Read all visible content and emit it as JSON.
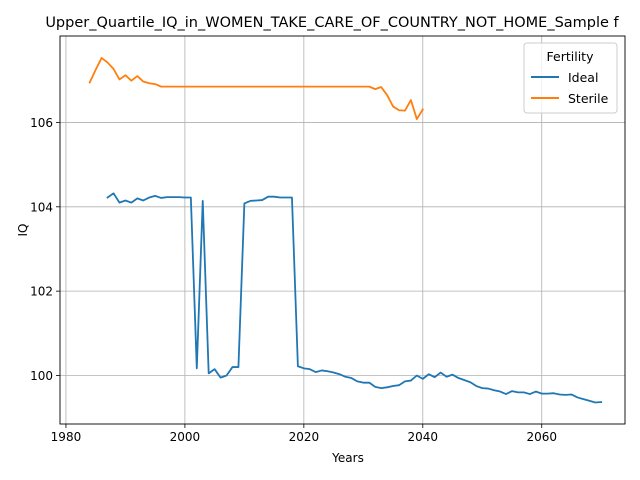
{
  "chart_data": {
    "type": "line",
    "title": "Upper_Quartile_IQ_in_WOMEN_TAKE_CARE_OF_COUNTRY_NOT_HOME_Sample f",
    "xlabel": "Years",
    "ylabel": "IQ",
    "xlim": [
      1979,
      2074
    ],
    "ylim": [
      98.85,
      108.05
    ],
    "xticks": [
      1980,
      2000,
      2020,
      2040,
      2060
    ],
    "yticks": [
      100,
      102,
      104,
      106
    ],
    "grid": true,
    "legend": {
      "title": "Fertility",
      "position": "top-right"
    },
    "series": [
      {
        "name": "Ideal",
        "color": "#1f77b4",
        "x": [
          1987,
          1988,
          1989,
          1990,
          1991,
          1992,
          1993,
          1994,
          1995,
          1996,
          1997,
          1998,
          1999,
          2000,
          2001,
          2002,
          2003,
          2004,
          2005,
          2006,
          2007,
          2008,
          2009,
          2010,
          2011,
          2012,
          2013,
          2014,
          2015,
          2016,
          2017,
          2018,
          2019,
          2020,
          2021,
          2022,
          2023,
          2024,
          2025,
          2026,
          2027,
          2028,
          2029,
          2030,
          2031,
          2032,
          2033,
          2034,
          2035,
          2036,
          2037,
          2038,
          2039,
          2040,
          2041,
          2042,
          2043,
          2044,
          2045,
          2046,
          2047,
          2048,
          2049,
          2050,
          2051,
          2052,
          2053,
          2054,
          2055,
          2056,
          2057,
          2058,
          2059,
          2060,
          2061,
          2062,
          2063,
          2064,
          2065,
          2066,
          2067,
          2068,
          2069,
          2070
        ],
        "y": [
          104.22,
          104.32,
          104.1,
          104.15,
          104.1,
          104.2,
          104.15,
          104.22,
          104.26,
          104.21,
          104.23,
          104.23,
          104.23,
          104.22,
          104.22,
          100.17,
          104.14,
          100.05,
          100.15,
          99.95,
          100.0,
          100.2,
          100.2,
          104.08,
          104.14,
          104.15,
          104.16,
          104.24,
          104.24,
          104.22,
          104.22,
          104.22,
          100.22,
          100.17,
          100.15,
          100.08,
          100.12,
          100.1,
          100.07,
          100.03,
          99.97,
          99.94,
          99.86,
          99.83,
          99.83,
          99.73,
          99.7,
          99.72,
          99.75,
          99.77,
          99.86,
          99.88,
          100.0,
          99.92,
          100.03,
          99.96,
          100.07,
          99.97,
          100.02,
          99.94,
          99.89,
          99.84,
          99.75,
          99.7,
          99.69,
          99.65,
          99.62,
          99.56,
          99.63,
          99.6,
          99.6,
          99.56,
          99.62,
          99.57,
          99.57,
          99.58,
          99.55,
          99.54,
          99.55,
          99.48,
          99.44,
          99.4,
          99.36,
          99.37
        ]
      },
      {
        "name": "Sterile",
        "color": "#ff7f0e",
        "x": [
          1984,
          1985,
          1986,
          1987,
          1988,
          1989,
          1990,
          1991,
          1992,
          1993,
          1994,
          1995,
          1996,
          1997,
          1998,
          1999,
          2000,
          2001,
          2002,
          2003,
          2004,
          2005,
          2006,
          2007,
          2008,
          2009,
          2010,
          2011,
          2012,
          2013,
          2014,
          2015,
          2016,
          2017,
          2018,
          2019,
          2020,
          2021,
          2022,
          2023,
          2024,
          2025,
          2026,
          2027,
          2028,
          2029,
          2030,
          2031,
          2032,
          2033,
          2034,
          2035,
          2036,
          2037,
          2038,
          2039,
          2040
        ],
        "y": [
          106.95,
          107.25,
          107.53,
          107.42,
          107.27,
          107.02,
          107.12,
          106.99,
          107.1,
          106.97,
          106.93,
          106.91,
          106.85,
          106.85,
          106.85,
          106.85,
          106.85,
          106.85,
          106.85,
          106.85,
          106.85,
          106.85,
          106.85,
          106.85,
          106.85,
          106.85,
          106.85,
          106.85,
          106.85,
          106.85,
          106.85,
          106.85,
          106.85,
          106.85,
          106.85,
          106.85,
          106.85,
          106.85,
          106.85,
          106.85,
          106.85,
          106.85,
          106.85,
          106.85,
          106.85,
          106.85,
          106.85,
          106.85,
          106.79,
          106.84,
          106.65,
          106.38,
          106.29,
          106.28,
          106.53,
          106.08,
          106.31
        ]
      }
    ]
  }
}
